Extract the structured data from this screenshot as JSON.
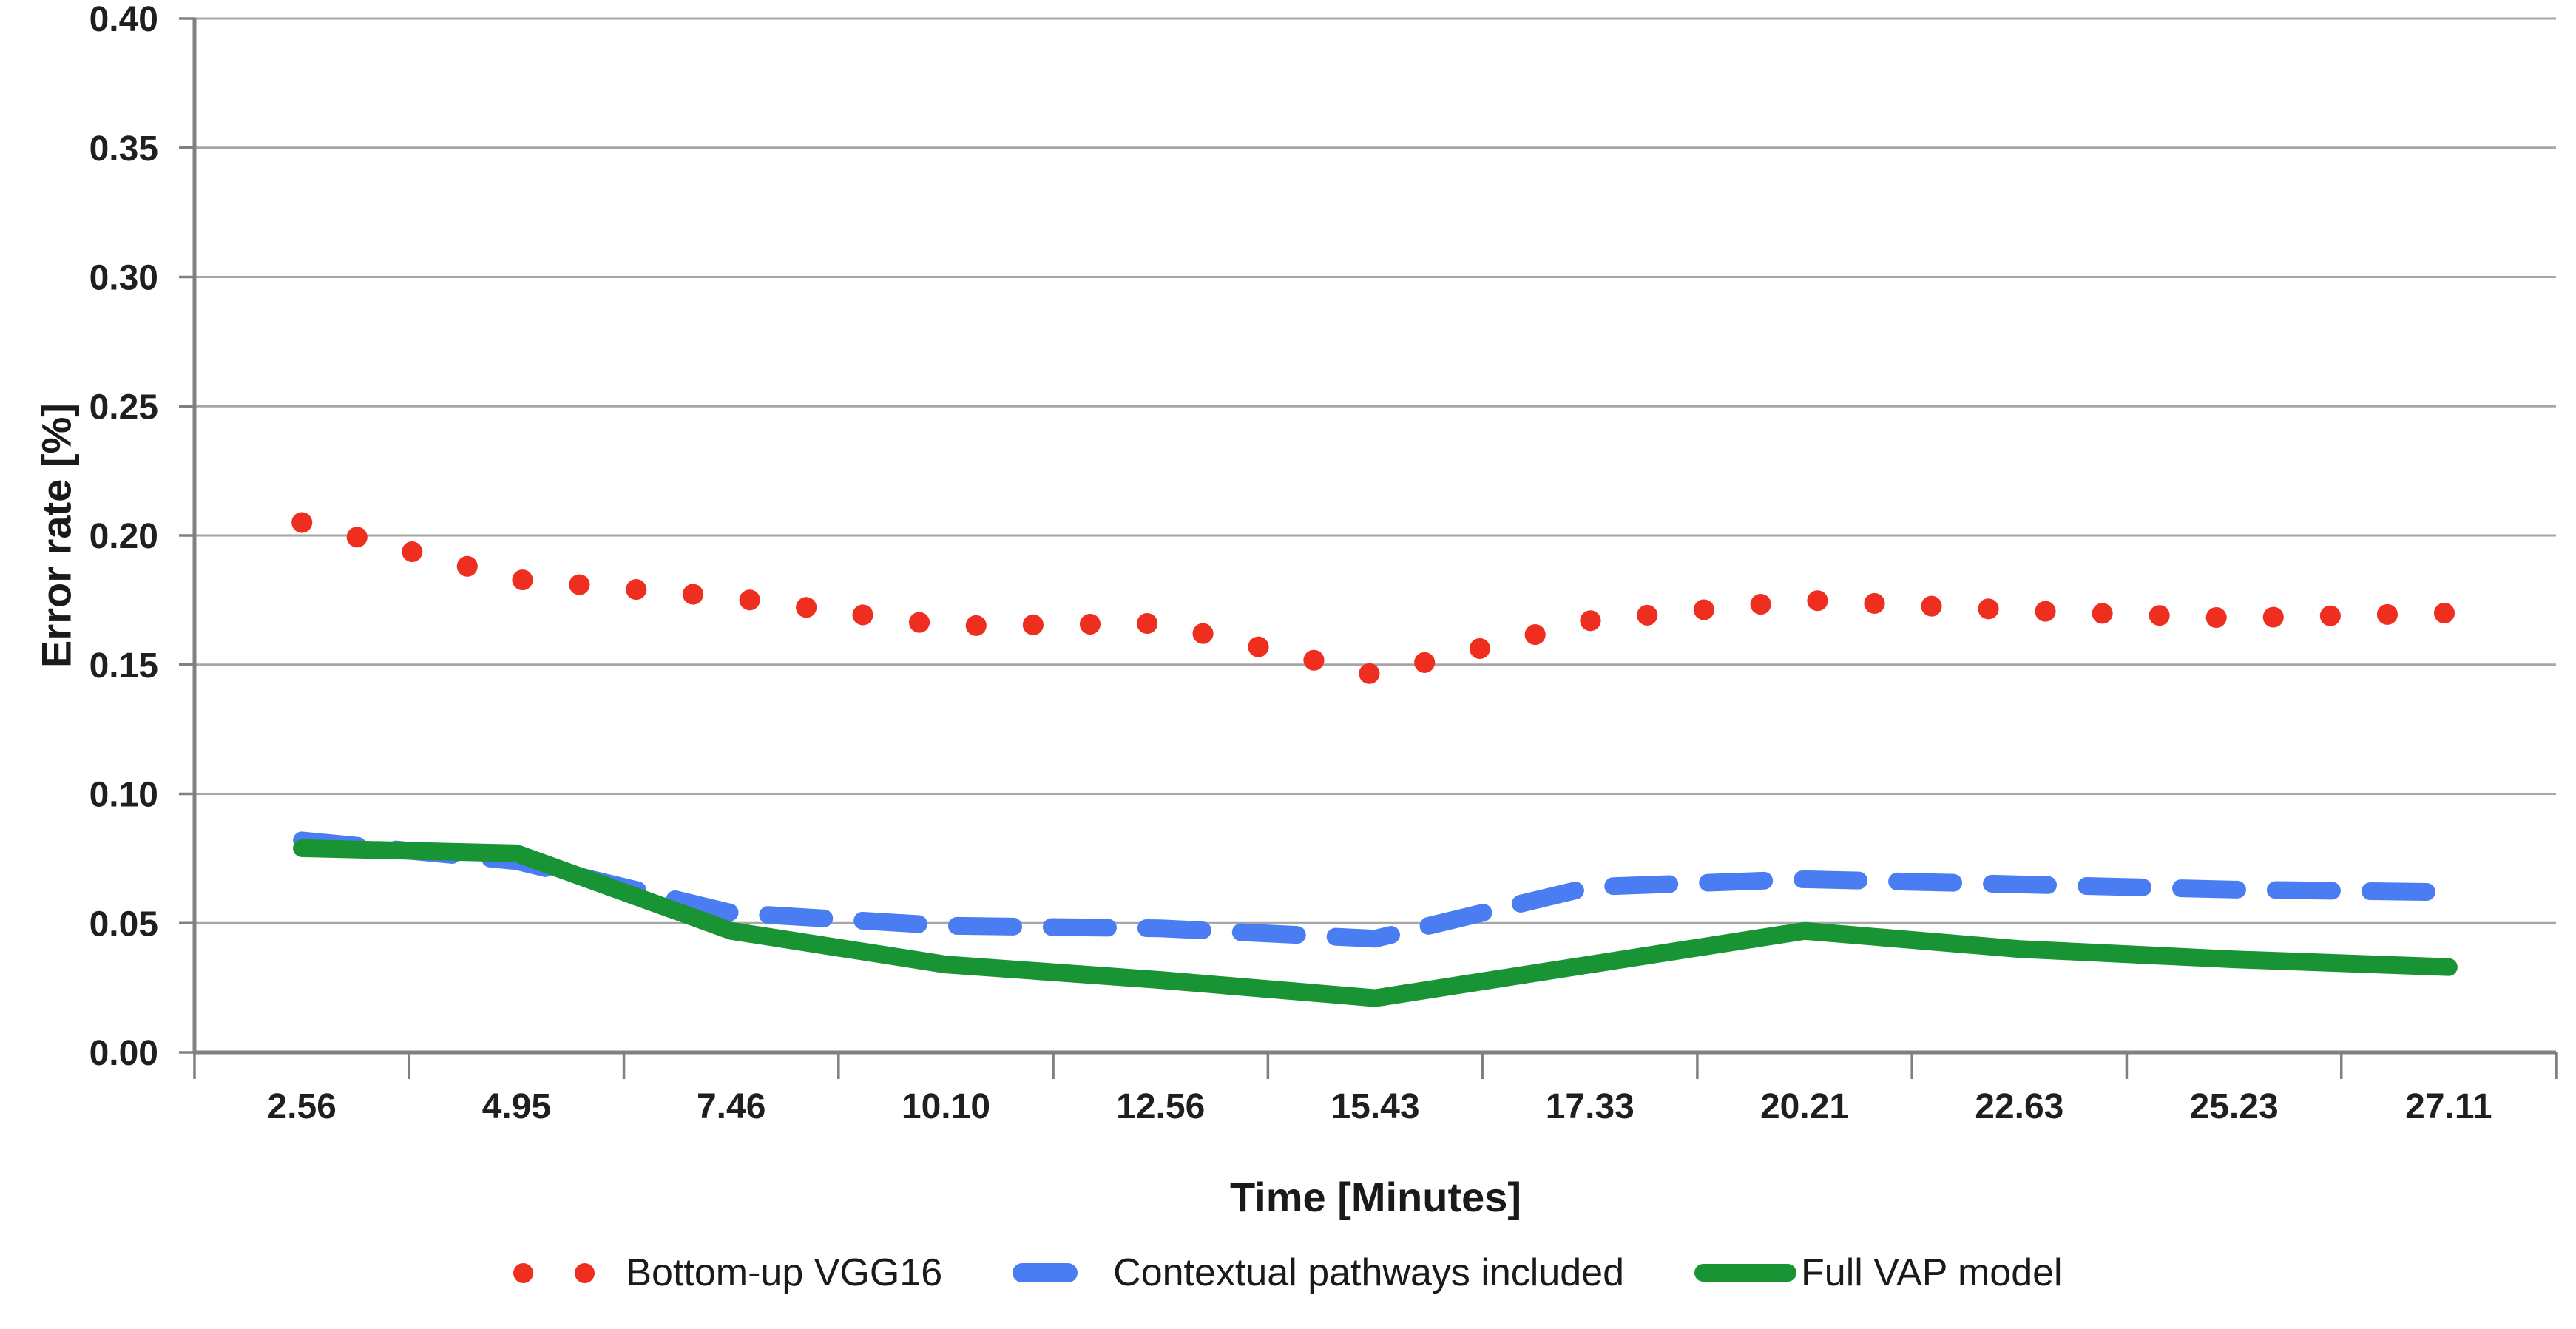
{
  "chart_data": {
    "type": "line",
    "categories": [
      "2.56",
      "4.95",
      "7.46",
      "10.10",
      "12.56",
      "15.43",
      "17.33",
      "20.21",
      "22.63",
      "25.23",
      "27.11"
    ],
    "xlabel": "Time [Minutes]",
    "ylabel": "Error rate [%]",
    "ylim": [
      0,
      0.4
    ],
    "y_tick_step": 0.05,
    "y_tick_labels": [
      "0.00",
      "0.05",
      "0.10",
      "0.15",
      "0.20",
      "0.25",
      "0.30",
      "0.35",
      "0.40"
    ],
    "grid": "horizontal-only",
    "legend_position": "bottom-center",
    "series": [
      {
        "name": "Bottom-up VGG16",
        "style": "dotted",
        "color": "#ee2e1f",
        "values": [
          0.205,
          0.183,
          0.176,
          0.165,
          0.166,
          0.146,
          0.167,
          0.175,
          0.171,
          0.168,
          0.17
        ]
      },
      {
        "name": "Contextual pathways included",
        "style": "dashed",
        "color": "#4a7df1",
        "values": [
          0.082,
          0.074,
          0.054,
          0.049,
          0.048,
          0.044,
          0.064,
          0.067,
          0.065,
          0.063,
          0.062
        ]
      },
      {
        "name": "Full VAP model",
        "style": "solid",
        "color": "#189434",
        "values": [
          0.079,
          0.077,
          0.047,
          0.034,
          0.028,
          0.021,
          0.034,
          0.047,
          0.04,
          0.036,
          0.033
        ]
      }
    ],
    "colors": {
      "gridline": "#a6a6a6",
      "axis": "#808080",
      "tick_text": "#1f1f1f"
    }
  }
}
